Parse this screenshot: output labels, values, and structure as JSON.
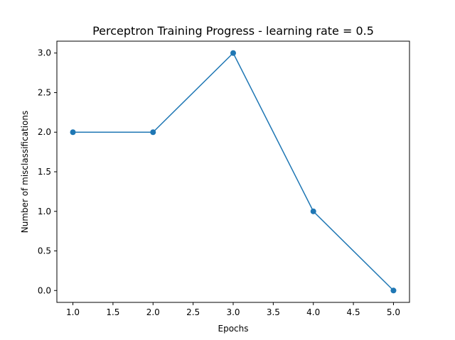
{
  "chart_data": {
    "type": "line",
    "title": "Perceptron Training Progress - learning rate = 0.5",
    "xlabel": "Epochs",
    "ylabel": "Number of misclassifications",
    "x": [
      1.0,
      2.0,
      3.0,
      4.0,
      5.0
    ],
    "series": [
      {
        "values": [
          2.0,
          2.0,
          3.0,
          1.0,
          0.0
        ],
        "color": "#1f77b4",
        "marker": "circle"
      }
    ],
    "xlim": [
      0.8,
      5.2
    ],
    "ylim": [
      -0.15,
      3.15
    ],
    "xticks": [
      "1.0",
      "1.5",
      "2.0",
      "2.5",
      "3.0",
      "3.5",
      "4.0",
      "4.5",
      "5.0"
    ],
    "yticks": [
      "0.0",
      "0.5",
      "1.0",
      "1.5",
      "2.0",
      "2.5",
      "3.0"
    ],
    "grid": false,
    "legend": "none"
  }
}
